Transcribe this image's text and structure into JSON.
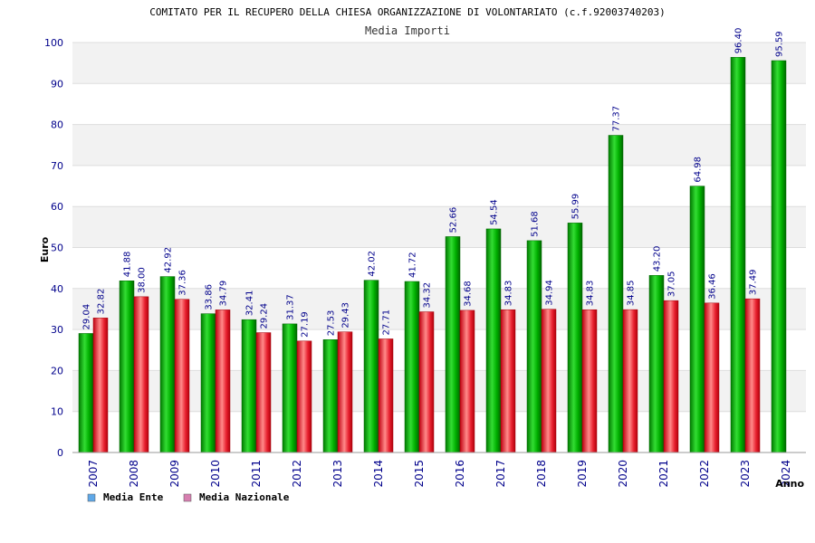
{
  "header": {
    "title": "COMITATO PER IL RECUPERO DELLA CHIESA ORGANIZZAZIONE DI VOLONTARIATO (c.f.92003740203)",
    "subtitle": "Media Importi"
  },
  "chart_data": {
    "type": "bar",
    "title": "COMITATO PER IL RECUPERO DELLA CHIESA ORGANIZZAZIONE DI VOLONTARIATO (c.f.92003740203)",
    "subtitle": "Media Importi",
    "xlabel": "Anno",
    "ylabel": "Euro",
    "ylim": [
      0,
      100
    ],
    "yticks": [
      0,
      10,
      20,
      30,
      40,
      50,
      60,
      70,
      80,
      90,
      100
    ],
    "grid": true,
    "legend": "bottom-left",
    "categories": [
      "2007",
      "2008",
      "2009",
      "2010",
      "2011",
      "2012",
      "2013",
      "2014",
      "2015",
      "2016",
      "2017",
      "2018",
      "2019",
      "2020",
      "2021",
      "2022",
      "2023",
      "2024"
    ],
    "series": [
      {
        "name": "Media Ente",
        "color": "#00aa00",
        "legend_color": "#5fa8e8",
        "values": [
          29.04,
          41.88,
          42.92,
          33.86,
          32.41,
          31.37,
          27.53,
          42.02,
          41.72,
          52.66,
          54.54,
          51.68,
          55.99,
          77.37,
          43.2,
          64.98,
          96.4,
          95.59
        ],
        "labels": [
          "29.04",
          "41.88",
          "42.92",
          "33.86",
          "32.41",
          "31.37",
          "27.53",
          "42.02",
          "41.72",
          "52.66",
          "54.54",
          "51.68",
          "55.99",
          "77.37",
          "43.20",
          "64.98",
          "96.40",
          "95.59"
        ]
      },
      {
        "name": "Media Nazionale",
        "color": "#e0001a",
        "legend_color": "#d77fb0",
        "values": [
          32.82,
          38.0,
          37.36,
          34.79,
          29.24,
          27.19,
          29.43,
          27.71,
          34.32,
          34.68,
          34.83,
          34.94,
          34.83,
          34.85,
          37.05,
          36.46,
          37.49,
          null
        ],
        "labels": [
          "32.82",
          "38.00",
          "37.36",
          "34.79",
          "29.24",
          "27.19",
          "29.43",
          "27.71",
          "34.32",
          "34.68",
          "34.83",
          "34.94",
          "34.83",
          "34.85",
          "37.05",
          "36.46",
          "37.49",
          ""
        ]
      }
    ]
  }
}
